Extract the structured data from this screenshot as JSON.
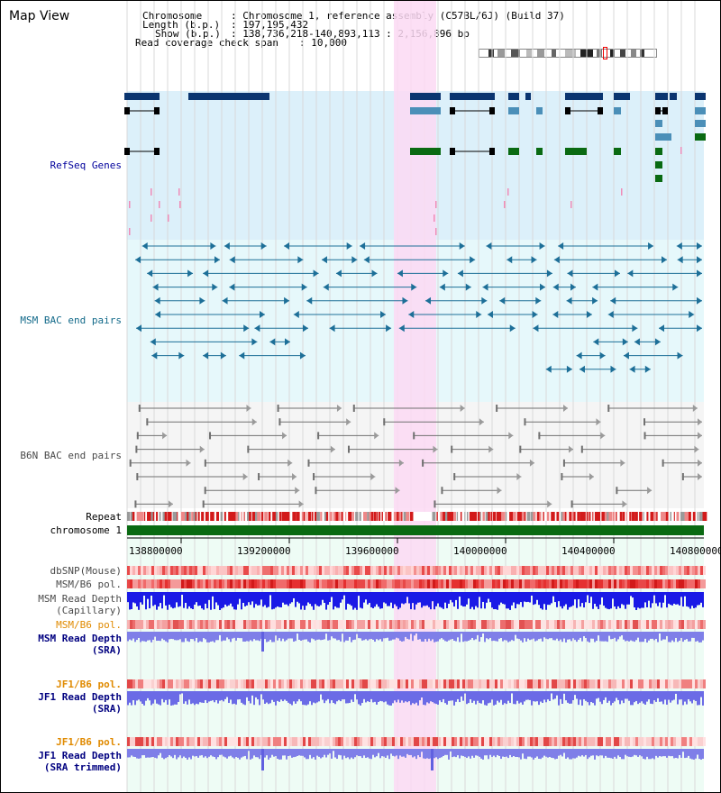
{
  "app": {
    "title": "Map View"
  },
  "info": {
    "chromosome_key": "Chromosome",
    "chromosome_val": ": Chromosome 1, reference assembly (C57BL/6J) (Build 37)",
    "length_key": "Length (b.p.)",
    "length_val": ": 197,195,432",
    "show_key": "Show (b.p.)",
    "show_val": ": 138,736,218-140,893,113 : 2,156,896 bp",
    "coverage_key": "Read coverage check span",
    "coverage_val": ": 10,000"
  },
  "tracks": {
    "refseq": "RefSeq Genes",
    "msm_bac": "MSM BAC end pairs",
    "b6n_bac": "B6N BAC end pairs",
    "repeat": "Repeat",
    "chromosome": "chromosome 1",
    "dbsnp": "dbSNP(Mouse)",
    "msm_b6_pol_1": "MSM/B6 pol.",
    "msm_read_depth_cap_1": "MSM Read Depth",
    "msm_read_depth_cap_2": "(Capillary)",
    "msm_b6_pol_2": "MSM/B6 pol.",
    "msm_read_depth_sra_1": "MSM Read Depth",
    "msm_read_depth_sra_2": "(SRA)",
    "jf1_b6_pol_1": "JF1/B6 pol.",
    "jf1_read_depth_sra_1": "JF1 Read Depth",
    "jf1_read_depth_sra_2": "(SRA)",
    "jf1_b6_pol_2": "JF1/B6 pol.",
    "jf1_read_depth_trim_1": "JF1 Read Depth",
    "jf1_read_depth_trim_2": "(SRA trimmed)"
  },
  "axis": {
    "ticks": [
      "138800000",
      "139200000",
      "139600000",
      "140000000",
      "140400000",
      "140800000"
    ]
  },
  "colors": {
    "refseq_bg": "#dcf0fa",
    "msm_bg": "#e6f8fb",
    "b6n_bg": "#f5f5f5",
    "highlight": "#fbd9f3",
    "gene_dark": "#0b3570",
    "gene_light": "#4b8fb8",
    "gene_green": "#0a6a12",
    "msm_line": "#1d6f98",
    "b6n_line": "#707070",
    "repeat_red": "#d21a1a",
    "chrom_green": "#0a6a12",
    "snp_pink": "#f7a6a6",
    "snp_red": "#e02020",
    "depth_blue": "#1a1ae6",
    "depth_light": "#7f7fe8",
    "pol_orange": "#e08a00"
  }
}
